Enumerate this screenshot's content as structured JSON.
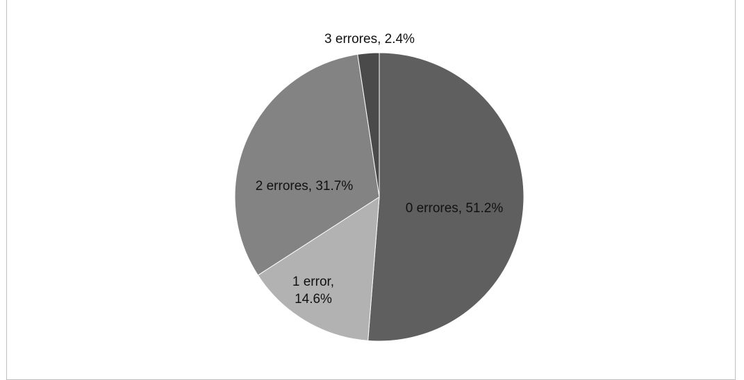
{
  "chart_data": {
    "type": "pie",
    "title": "",
    "categories": [
      "0 errores",
      "1 error",
      "2 errores",
      "3 errores"
    ],
    "values": [
      51.2,
      14.6,
      31.7,
      2.4
    ],
    "unit": "%",
    "colors": [
      "#5f5f5f",
      "#b2b2b2",
      "#838383",
      "#4a4a4a"
    ],
    "slice_order": "clockwise from 12 o'clock",
    "labels": [
      {
        "lines": [
          "0 errores, 51.2%"
        ]
      },
      {
        "lines": [
          "1 error,",
          "14.6%"
        ]
      },
      {
        "lines": [
          "2 errores, 31.7%"
        ]
      },
      {
        "lines": [
          "3 errores, 2.4%"
        ]
      }
    ],
    "legend": "none"
  }
}
